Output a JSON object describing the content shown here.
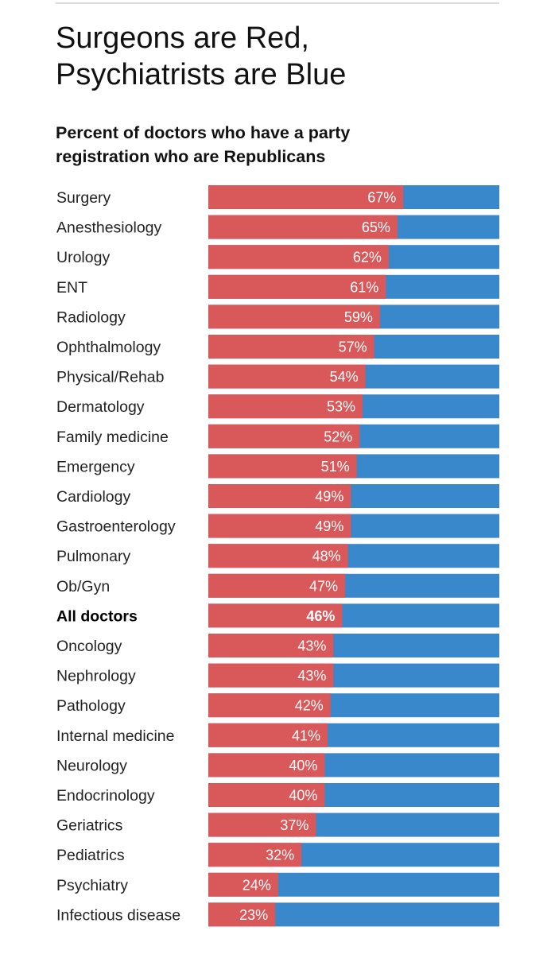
{
  "page": {
    "title": "Surgeons are Red,\nPsychiatrists are Blue",
    "subtitle": "Percent of doctors who have a party\nregistration who are Republicans"
  },
  "colors": {
    "republican": "#d9585a",
    "democrat": "#3a88cc",
    "highlight_label": "#000000"
  },
  "chart_data": {
    "type": "bar",
    "orientation": "horizontal",
    "stacked": true,
    "title": "Surgeons are Red, Psychiatrists are Blue",
    "subtitle": "Percent of doctors who have a party registration who are Republicans",
    "xlim": [
      0,
      100
    ],
    "grid": false,
    "legend": "none",
    "highlight_category": "All doctors",
    "categories": [
      "Surgery",
      "Anesthesiology",
      "Urology",
      "ENT",
      "Radiology",
      "Ophthalmology",
      "Physical/Rehab",
      "Dermatology",
      "Family medicine",
      "Emergency",
      "Cardiology",
      "Gastroenterology",
      "Pulmonary",
      "Ob/Gyn",
      "All doctors",
      "Oncology",
      "Nephrology",
      "Pathology",
      "Internal medicine",
      "Neurology",
      "Endocrinology",
      "Geriatrics",
      "Pediatrics",
      "Psychiatry",
      "Infectious disease"
    ],
    "values": [
      67,
      65,
      62,
      61,
      59,
      57,
      54,
      53,
      52,
      51,
      49,
      49,
      48,
      47,
      46,
      43,
      43,
      42,
      41,
      40,
      40,
      37,
      32,
      24,
      23
    ],
    "value_labels": [
      "67%",
      "65%",
      "62%",
      "61%",
      "59%",
      "57%",
      "54%",
      "53%",
      "52%",
      "51%",
      "49%",
      "49%",
      "48%",
      "47%",
      "46%",
      "43%",
      "43%",
      "42%",
      "41%",
      "40%",
      "40%",
      "37%",
      "32%",
      "24%",
      "23%"
    ]
  }
}
